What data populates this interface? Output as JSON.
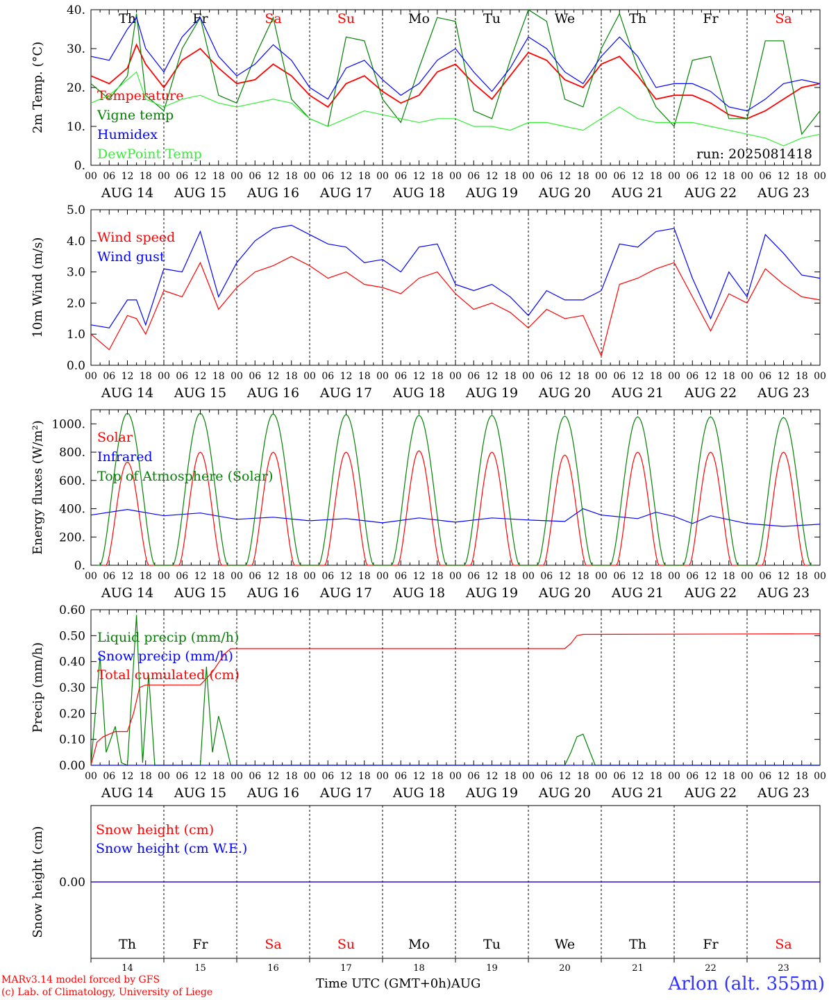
{
  "chart_data": {
    "type": "line",
    "run_label": "run: 2025081418",
    "x_ticks": [
      "00",
      "06",
      "12",
      "18"
    ],
    "date_labels": [
      "AUG 14",
      "AUG 15",
      "AUG 16",
      "AUG 17",
      "AUG 18",
      "AUG 19",
      "AUG 20",
      "AUG 21",
      "AUG 22",
      "AUG 23"
    ],
    "weekdays": [
      "Th",
      "Fr",
      "Sa",
      "Su",
      "Mo",
      "Tu",
      "We",
      "Th",
      "Fr",
      "Sa"
    ],
    "weekend_color": "#ff0000",
    "day_numbers": [
      "14",
      "15",
      "16",
      "17",
      "18",
      "19",
      "20",
      "21",
      "22",
      "23"
    ],
    "x_axis_title": "Time UTC (GMT+0h)",
    "month_label": "AUG",
    "footer": {
      "model": "MARv3.14 model forced by GFS",
      "credit": "(c) Lab. of Climatology, University of Liege",
      "station": "Arlon (alt. 355m)"
    },
    "panels": [
      {
        "ylabel": "2m Temp. (°C)",
        "ylim": [
          0,
          40
        ],
        "yticks": [
          "0.",
          "10.",
          "20.",
          "30.",
          "40."
        ],
        "series": [
          {
            "name": "Temperature",
            "color": "#ff0000",
            "x": [
              0,
              6,
              12,
              15,
              18,
              24,
              30,
              36,
              42,
              48,
              54,
              60,
              66,
              72,
              78,
              84,
              90,
              96,
              102,
              108,
              114,
              120,
              126,
              132,
              138,
              144,
              150,
              156,
              162,
              168,
              174,
              180,
              186,
              192,
              198,
              204,
              210,
              216,
              222,
              228,
              234,
              240
            ],
            "y": [
              23,
              21,
              25,
              31,
              26,
              20,
              27,
              30,
              25,
              21,
              22,
              26,
              23,
              18,
              15,
              21,
              23,
              19,
              16,
              18,
              24,
              26,
              21,
              17,
              23,
              29,
              27,
              22,
              20,
              26,
              28,
              23,
              17,
              18,
              18,
              16,
              13,
              12,
              14,
              17,
              20,
              21
            ]
          },
          {
            "name": "Vigne temp",
            "color": "#008000",
            "x": [
              0,
              6,
              12,
              15,
              18,
              24,
              30,
              36,
              42,
              48,
              54,
              60,
              66,
              72,
              78,
              84,
              90,
              96,
              102,
              108,
              114,
              120,
              126,
              132,
              138,
              144,
              150,
              156,
              162,
              168,
              174,
              180,
              186,
              192,
              198,
              204,
              210,
              216,
              222,
              228,
              234,
              240
            ],
            "y": [
              21,
              17,
              23,
              39,
              18,
              14,
              30,
              38,
              18,
              16,
              28,
              38,
              17,
              12,
              10,
              33,
              32,
              17,
              11,
              25,
              38,
              37,
              14,
              12,
              27,
              40,
              37,
              17,
              15,
              30,
              39,
              25,
              15,
              10,
              27,
              28,
              12,
              12,
              32,
              32,
              8,
              14
            ]
          },
          {
            "name": "Humidex",
            "color": "#0000ff",
            "x": [
              0,
              6,
              12,
              15,
              18,
              24,
              30,
              36,
              42,
              48,
              54,
              60,
              66,
              72,
              78,
              84,
              90,
              96,
              102,
              108,
              114,
              120,
              126,
              132,
              138,
              144,
              150,
              156,
              162,
              168,
              174,
              180,
              186,
              192,
              198,
              204,
              210,
              216,
              222,
              228,
              234,
              240
            ],
            "y": [
              28,
              27,
              35,
              38,
              30,
              24,
              33,
              38,
              28,
              23,
              26,
              31,
              27,
              20,
              17,
              25,
              27,
              22,
              18,
              21,
              27,
              30,
              24,
              19,
              25,
              33,
              30,
              24,
              21,
              28,
              33,
              28,
              20,
              21,
              21,
              19,
              15,
              14,
              17,
              21,
              22,
              21
            ]
          },
          {
            "name": "DewPoint Temp",
            "color": "#33ee33",
            "x": [
              0,
              6,
              12,
              15,
              18,
              24,
              30,
              36,
              42,
              48,
              54,
              60,
              66,
              72,
              78,
              84,
              90,
              96,
              102,
              108,
              114,
              120,
              126,
              132,
              138,
              144,
              150,
              156,
              162,
              168,
              174,
              180,
              186,
              192,
              198,
              204,
              210,
              216,
              222,
              228,
              234,
              240
            ],
            "y": [
              16,
              18,
              22,
              24,
              17,
              15,
              17,
              18,
              16,
              15,
              16,
              17,
              16,
              12,
              10,
              12,
              14,
              13,
              12,
              11,
              12,
              12,
              10,
              10,
              9,
              11,
              11,
              10,
              9,
              12,
              15,
              12,
              11,
              11,
              11,
              10,
              9,
              8,
              7,
              5,
              7,
              8
            ]
          }
        ]
      },
      {
        "ylabel": "10m Wind (m/s)",
        "ylim": [
          0,
          5
        ],
        "yticks": [
          "0.0",
          "1.0",
          "2.0",
          "3.0",
          "4.0",
          "5.0"
        ],
        "series": [
          {
            "name": "Wind speed",
            "color": "#ff0000",
            "x": [
              0,
              6,
              12,
              15,
              18,
              24,
              30,
              36,
              42,
              48,
              54,
              60,
              66,
              72,
              78,
              84,
              90,
              96,
              102,
              108,
              114,
              120,
              126,
              132,
              138,
              144,
              150,
              156,
              162,
              168,
              174,
              180,
              186,
              192,
              198,
              204,
              210,
              216,
              222,
              228,
              234,
              240
            ],
            "y": [
              1.0,
              0.5,
              1.6,
              1.5,
              1.0,
              2.4,
              2.2,
              3.3,
              1.8,
              2.5,
              3.0,
              3.2,
              3.5,
              3.2,
              2.8,
              3.0,
              2.6,
              2.5,
              2.3,
              2.8,
              3.0,
              2.3,
              1.8,
              2.0,
              1.7,
              1.2,
              1.8,
              1.5,
              1.6,
              0.3,
              2.6,
              2.8,
              3.1,
              3.3,
              2.2,
              1.1,
              2.3,
              2.0,
              3.1,
              2.6,
              2.2,
              2.1
            ]
          },
          {
            "name": "Wind gust",
            "color": "#0000ff",
            "x": [
              0,
              6,
              12,
              15,
              18,
              24,
              30,
              36,
              42,
              48,
              54,
              60,
              66,
              72,
              78,
              84,
              90,
              96,
              102,
              108,
              114,
              120,
              126,
              132,
              138,
              144,
              150,
              156,
              162,
              168,
              174,
              180,
              186,
              192,
              198,
              204,
              210,
              216,
              222,
              228,
              234,
              240
            ],
            "y": [
              1.3,
              1.2,
              2.1,
              2.1,
              1.3,
              3.1,
              3.0,
              4.3,
              2.2,
              3.3,
              4.0,
              4.4,
              4.5,
              4.2,
              3.9,
              3.8,
              3.3,
              3.4,
              3.0,
              3.8,
              3.9,
              2.6,
              2.4,
              2.6,
              2.2,
              1.6,
              2.4,
              2.1,
              2.1,
              2.4,
              3.9,
              3.8,
              4.3,
              4.4,
              2.8,
              1.5,
              3.0,
              2.2,
              4.2,
              3.6,
              2.9,
              2.8
            ]
          }
        ]
      },
      {
        "ylabel": "Energy fluxes (W/m²)",
        "ylim": [
          0,
          1100
        ],
        "yticks": [
          "0.",
          "200.",
          "400.",
          "600.",
          "800.",
          "1000."
        ],
        "series": [
          {
            "name": "Solar",
            "color": "#ff0000",
            "peak_per_day": [
              730,
              800,
              800,
              800,
              810,
              800,
              780,
              800,
              800,
              800
            ]
          },
          {
            "name": "Infrared",
            "color": "#0000ff",
            "x": [
              0,
              12,
              24,
              36,
              48,
              60,
              72,
              84,
              96,
              108,
              120,
              132,
              144,
              156,
              162,
              168,
              180,
              186,
              192,
              198,
              204,
              216,
              228,
              240
            ],
            "y": [
              355,
              395,
              350,
              370,
              325,
              340,
              315,
              330,
              300,
              335,
              305,
              335,
              320,
              310,
              400,
              355,
              330,
              375,
              345,
              295,
              350,
              295,
              275,
              290
            ]
          },
          {
            "name": "Top of Atmosphere (Solar)",
            "color": "#008000",
            "peak_per_day": [
              1075,
              1075,
              1070,
              1065,
              1060,
              1060,
              1055,
              1050,
              1050,
              1045
            ]
          }
        ]
      },
      {
        "ylabel": "Precip (mm/h)",
        "ylim": [
          0,
          0.6
        ],
        "yticks": [
          "0.00",
          "0.10",
          "0.20",
          "0.30",
          "0.40",
          "0.50",
          "0.60"
        ],
        "series": [
          {
            "name": "Liquid precip (mm/h)",
            "color": "#008000",
            "x": [
              0,
              3,
              5,
              8,
              10,
              12,
              15,
              17,
              19,
              21,
              24,
              30,
              36,
              38,
              40,
              42,
              44,
              46,
              48,
              156,
              158,
              160,
              162,
              164,
              166,
              168,
              240
            ],
            "y": [
              0,
              0.42,
              0.05,
              0.15,
              0.01,
              0,
              0.58,
              0.01,
              0.35,
              0,
              0,
              0,
              0,
              0.38,
              0.05,
              0.19,
              0.1,
              0,
              0,
              0,
              0.05,
              0.11,
              0.12,
              0.06,
              0,
              0,
              0
            ]
          },
          {
            "name": "Snow precip (mm/h)",
            "color": "#0000ff",
            "x": [
              0,
              240
            ],
            "y": [
              0,
              0
            ]
          },
          {
            "name": "Total cumulated (cm)",
            "color": "#ff0000",
            "x": [
              0,
              2,
              4,
              8,
              12,
              14,
              16,
              18,
              24,
              30,
              36,
              40,
              44,
              46,
              48,
              156,
              158,
              160,
              162,
              240
            ],
            "y": [
              0,
              0.09,
              0.11,
              0.13,
              0.13,
              0.2,
              0.3,
              0.31,
              0.31,
              0.31,
              0.31,
              0.36,
              0.43,
              0.45,
              0.45,
              0.45,
              0.47,
              0.5,
              0.505,
              0.507
            ]
          }
        ]
      },
      {
        "ylabel": "Snow height (cm)",
        "ylim": [
          -1,
          1
        ],
        "yticks": [
          "0.00"
        ],
        "series": [
          {
            "name": "Snow height (cm)",
            "color": "#ff0000",
            "x": [
              0,
              240
            ],
            "y": [
              0,
              0
            ]
          },
          {
            "name": "Snow height (cm W.E.)",
            "color": "#0000ff",
            "x": [
              0,
              240
            ],
            "y": [
              0,
              0
            ]
          }
        ]
      }
    ]
  }
}
